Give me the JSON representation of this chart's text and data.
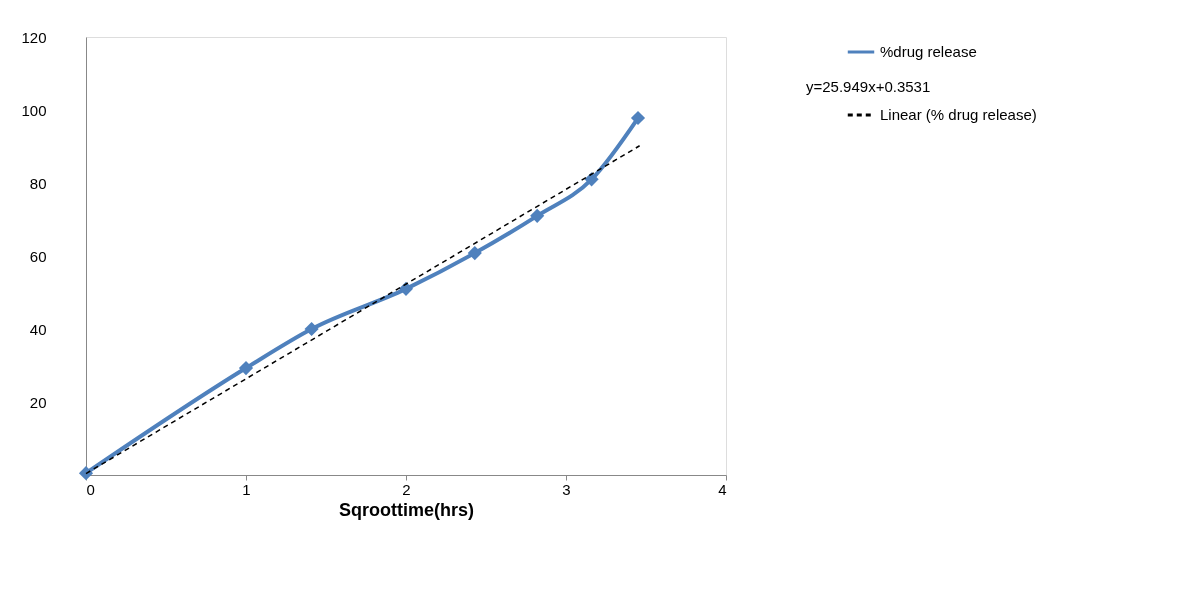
{
  "chart_data": {
    "type": "line",
    "xlabel": "Sqroottime(hrs)",
    "xlim": [
      0,
      4
    ],
    "xticks": [
      0,
      1,
      2,
      3,
      4
    ],
    "ylim": [
      0,
      120
    ],
    "yticks": [
      20,
      40,
      60,
      80,
      100,
      120
    ],
    "grid": false,
    "legend": "right",
    "annotations": [
      "y=25.949x+0.3531"
    ],
    "series": [
      {
        "name": "%drug release",
        "color": "#4f81bd",
        "marker": "diamond",
        "line_style": "solid",
        "x": [
          0,
          1,
          1.41,
          2,
          2.43,
          2.82,
          3.16,
          3.45
        ],
        "values": [
          0.5,
          29.3,
          40,
          51,
          60.8,
          71,
          81,
          97.8
        ]
      },
      {
        "name": "Linear (% drug release)",
        "color": "#000000",
        "marker": "none",
        "line_style": "dashed",
        "x": [
          0,
          3.46
        ],
        "values": [
          0.4,
          90.2
        ]
      }
    ]
  }
}
